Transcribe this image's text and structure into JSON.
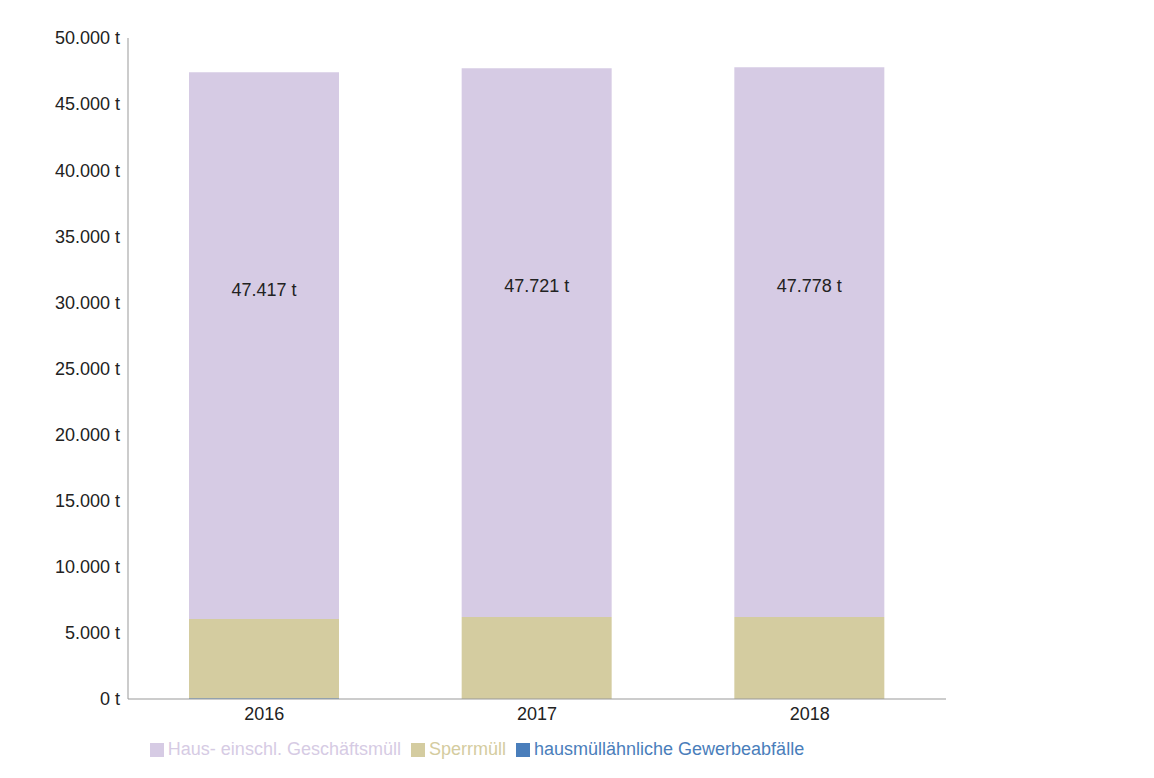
{
  "chart_data": {
    "type": "bar",
    "stacked": true,
    "categories": [
      "2016",
      "2017",
      "2018"
    ],
    "series": [
      {
        "name": "hausmüllähnliche Gewerbeabfälle",
        "color": "#4a7ebb",
        "values": [
          50,
          0,
          0
        ]
      },
      {
        "name": "Sperrmüll",
        "color": "#d4cca0",
        "values": [
          6000,
          6200,
          6200
        ]
      },
      {
        "name": "Haus- einschl. Geschäftsmüll",
        "color": "#d6cbe4",
        "values": [
          41367,
          41521,
          41578
        ]
      }
    ],
    "totals": [
      47417,
      47721,
      47778
    ],
    "total_labels": [
      "47.417 t",
      "47.721 t",
      "47.778 t"
    ],
    "ylim": [
      0,
      50000
    ],
    "yticks": [
      {
        "value": 0,
        "label": "0 t"
      },
      {
        "value": 5000,
        "label": "5.000 t"
      },
      {
        "value": 10000,
        "label": "10.000 t"
      },
      {
        "value": 15000,
        "label": "15.000 t"
      },
      {
        "value": 20000,
        "label": "20.000 t"
      },
      {
        "value": 25000,
        "label": "25.000 t"
      },
      {
        "value": 30000,
        "label": "30.000 t"
      },
      {
        "value": 35000,
        "label": "35.000 t"
      },
      {
        "value": 40000,
        "label": "40.000 t"
      },
      {
        "value": 45000,
        "label": "45.000 t"
      },
      {
        "value": 50000,
        "label": "50.000 t"
      }
    ],
    "grid": false,
    "legend": "bottom"
  }
}
